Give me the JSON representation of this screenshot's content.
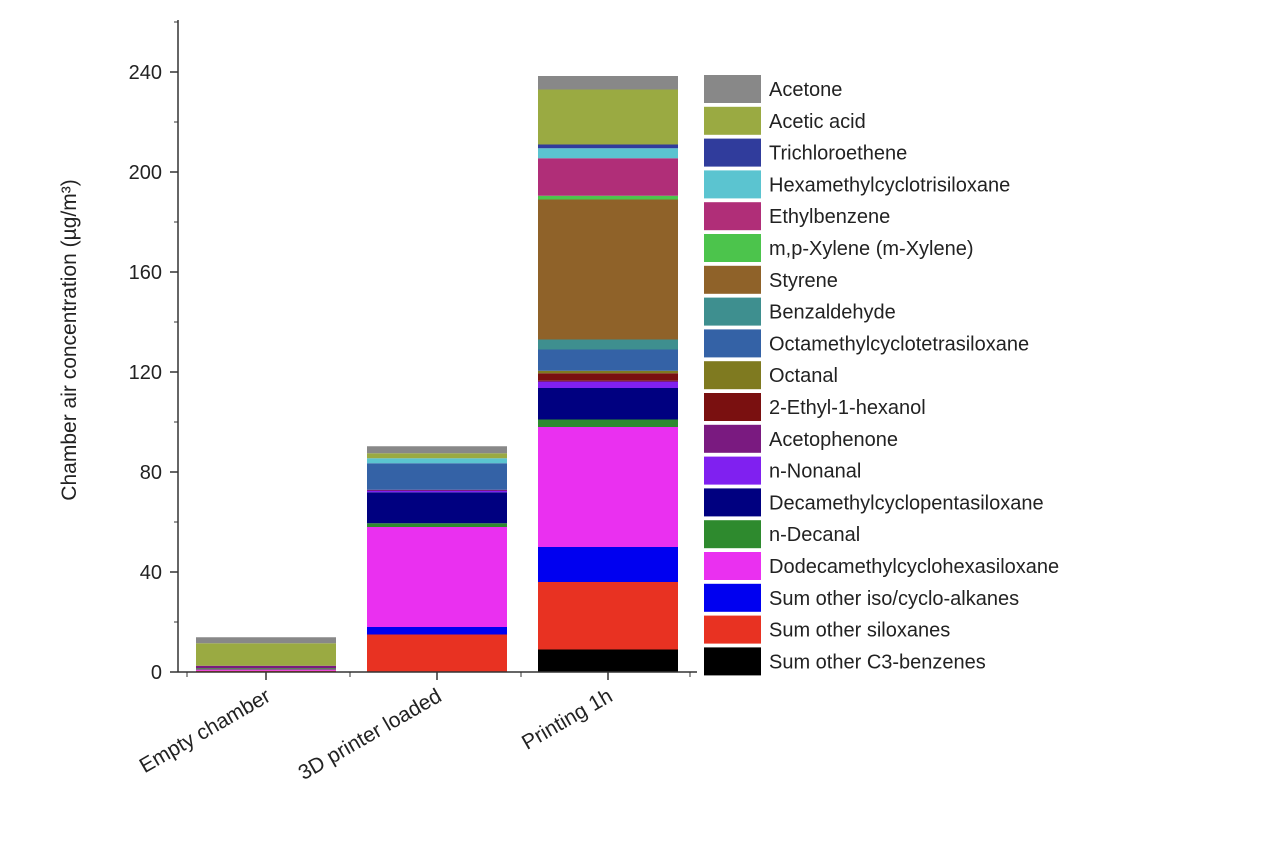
{
  "chart_data": {
    "type": "bar",
    "stacked": true,
    "ylabel": "Chamber air concentration (µg/m³)",
    "ylim": [
      0,
      260
    ],
    "yticks": [
      "0",
      "40",
      "80",
      "120",
      "160",
      "200",
      "240"
    ],
    "grid": false,
    "legend_placement": "right",
    "categories": [
      "Empty chamber",
      "3D printer loaded",
      "Printing 1h"
    ],
    "series": [
      {
        "name": "Sum other C3-benzenes",
        "color": "#000000",
        "values": [
          0,
          0,
          9
        ]
      },
      {
        "name": "Sum other siloxanes",
        "color": "#e83222",
        "values": [
          0.5,
          15,
          27
        ]
      },
      {
        "name": "Sum other iso/cyclo-alkanes",
        "color": "#0000f0",
        "values": [
          0,
          3,
          14
        ]
      },
      {
        "name": "Dodecamethylcyclohexasiloxane",
        "color": "#ea30f0",
        "values": [
          0.5,
          40,
          48
        ]
      },
      {
        "name": "n-Decanal",
        "color": "#2e8a2e",
        "values": [
          0.5,
          1.5,
          3
        ]
      },
      {
        "name": "Decamethylcyclopentasiloxane",
        "color": "#000080",
        "values": [
          0,
          12.4,
          12.6
        ]
      },
      {
        "name": "n-Nonanal",
        "color": "#8020f0",
        "values": [
          0,
          0.5,
          2.4
        ]
      },
      {
        "name": "Acetophenone",
        "color": "#7a1a80",
        "values": [
          1,
          0.5,
          0.5
        ]
      },
      {
        "name": "2-Ethyl-1-hexanol",
        "color": "#7a1010",
        "values": [
          0,
          0,
          3
        ]
      },
      {
        "name": "Octanal",
        "color": "#7f7a20",
        "values": [
          0,
          0,
          1
        ]
      },
      {
        "name": "Octamethylcyclotetrasiloxane",
        "color": "#3462a6",
        "values": [
          0,
          10.6,
          8.5
        ]
      },
      {
        "name": "Benzaldehyde",
        "color": "#3e8f8f",
        "values": [
          0,
          0,
          4
        ]
      },
      {
        "name": "Styrene",
        "color": "#8f6229",
        "values": [
          0,
          0,
          56
        ]
      },
      {
        "name": "m,p-Xylene (m-Xylene)",
        "color": "#4cc44c",
        "values": [
          0,
          0,
          1.5
        ]
      },
      {
        "name": "Ethylbenzene",
        "color": "#b02e78",
        "values": [
          0,
          0,
          15
        ]
      },
      {
        "name": "Hexamethylcyclotrisiloxane",
        "color": "#5bc4d0",
        "values": [
          0,
          2,
          4
        ]
      },
      {
        "name": "Trichloroethene",
        "color": "#303c9c",
        "values": [
          0,
          0,
          1.5
        ]
      },
      {
        "name": "Acetic acid",
        "color": "#9aaa42",
        "values": [
          9,
          2,
          22
        ]
      },
      {
        "name": "Acetone",
        "color": "#888888",
        "values": [
          2.4,
          2.8,
          5.4
        ]
      }
    ]
  }
}
